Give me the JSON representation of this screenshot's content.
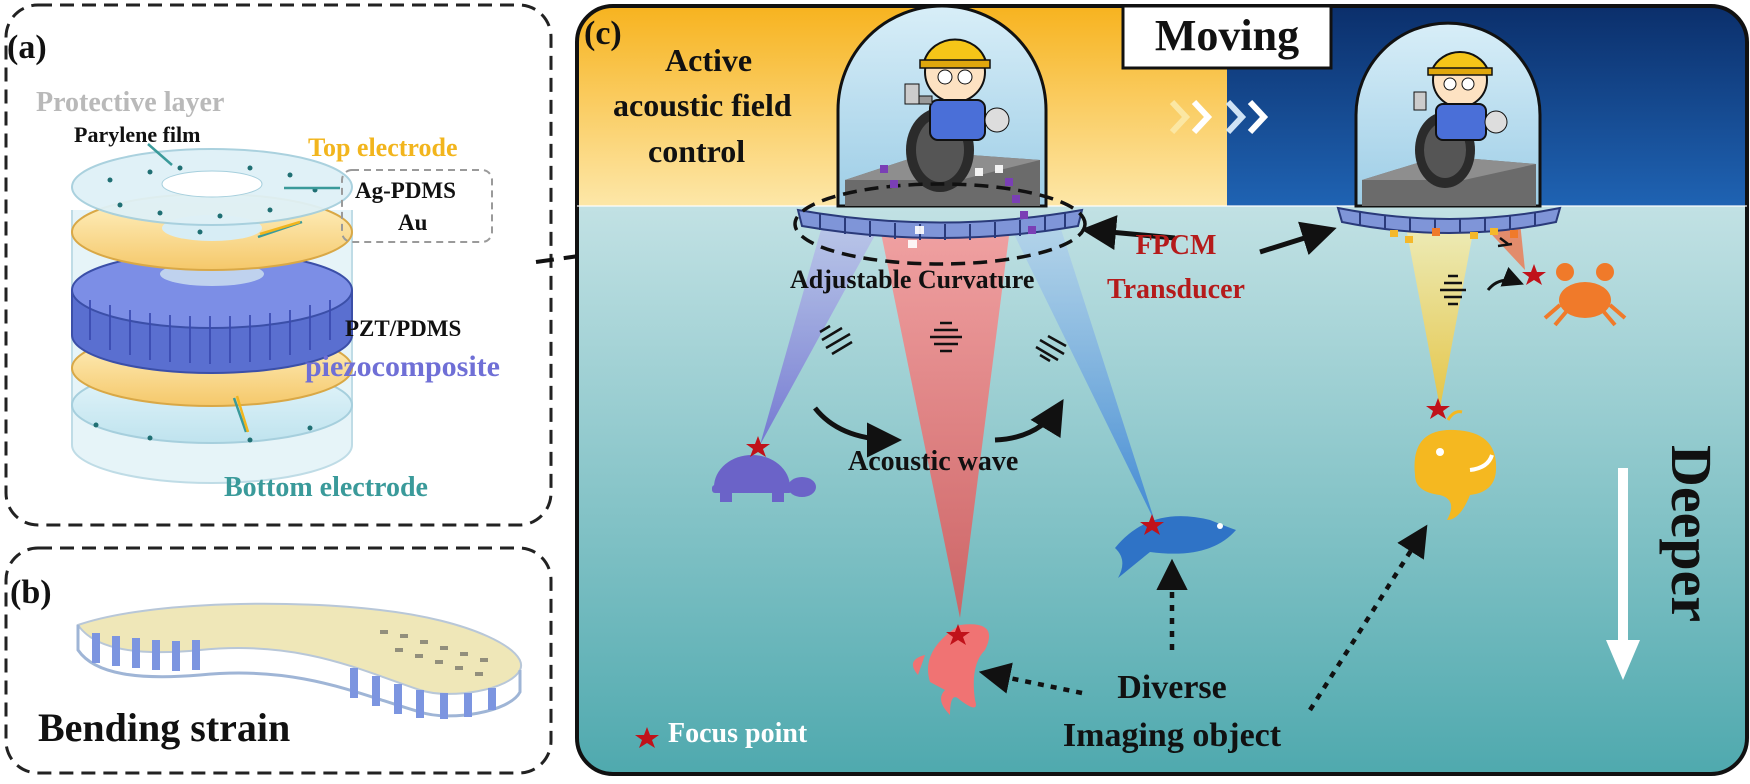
{
  "panel_a": {
    "tag": "(a)",
    "protective_layer": "Protective layer",
    "parylene_film": "Parylene film",
    "top_electrode": "Top electrode",
    "ag_pdms": "Ag-PDMS",
    "au": "Au",
    "pzt_pdms": "PZT/PDMS",
    "piezocomposite": "piezocomposite",
    "bottom_electrode": "Bottom electrode"
  },
  "panel_b": {
    "tag": "(b)",
    "bending_strain": "Bending strain"
  },
  "panel_c": {
    "tag": "(c)",
    "active_line1": "Active",
    "active_line2": "acoustic field",
    "active_line3": "control",
    "moving": "Moving",
    "adjustable_curvature": "Adjustable Curvature",
    "fpcm": "FPCM",
    "transducer": "Transducer",
    "acoustic_wave": "Acoustic wave",
    "deeper": "Deeper",
    "focus_point": "Focus point",
    "diverse": "Diverse",
    "imaging_object": "Imaging object"
  },
  "colors": {
    "gold": "#f6c23a",
    "navy": "#0d3577",
    "sea_top": "#e4f2f5",
    "sea_bottom": "#5ab3b8",
    "red_beam": "#f25b5b",
    "focus": "#c0121a",
    "electrode_text": "#f2b51d",
    "piezo_text": "#6f6fd6",
    "bottom_text": "#3a9a9a",
    "fpcm_text": "#b51b1b"
  }
}
